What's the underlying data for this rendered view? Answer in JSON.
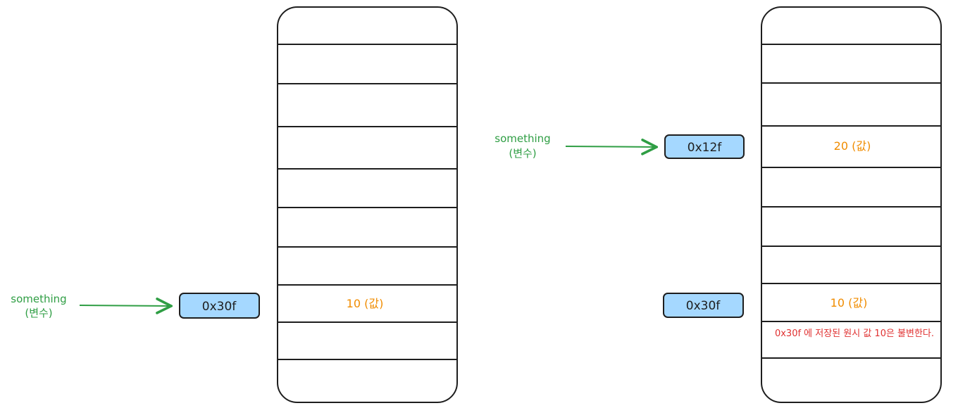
{
  "left": {
    "var_name": "something",
    "var_kind": "(변수)",
    "address": "0x30f",
    "cell_value": "10 (값)"
  },
  "right": {
    "var_name": "something",
    "var_kind": "(변수)",
    "address_new": "0x12f",
    "cell_value_new": "20 (값)",
    "address_old": "0x30f",
    "cell_value_old": "10 (값)",
    "note": "0x30f 에 저장된 원시 값 10은 불변한다."
  },
  "colors": {
    "stroke": "#1e1e1e",
    "address_fill": "#a5d8ff",
    "arrow": "#2f9e44",
    "value_text": "#f08c00",
    "note_text": "#e03131"
  }
}
